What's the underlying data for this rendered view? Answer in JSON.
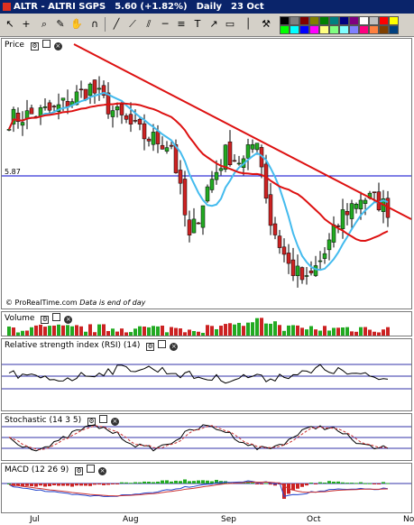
{
  "window": {
    "title_symbol": "ALTR - ALTRI SGPS",
    "title_price": "5.60 (+1.82%)",
    "title_period": "Daily",
    "title_date": "23 Oct"
  },
  "toolbar": {
    "icons": [
      "pointer-icon",
      "cross-icon",
      "zoom-icon",
      "brush-icon",
      "hand-icon",
      "magnet-icon",
      "line-icon",
      "ray-icon",
      "channel-icon",
      "horizontal-line-icon",
      "vertical-line-icon",
      "fibonacci-icon",
      "text-icon",
      "arrow-icon",
      "rectangle-icon",
      "tools-icon",
      "trash-icon"
    ],
    "palette": [
      "#000000",
      "#7f7f7f",
      "#800000",
      "#808000",
      "#008000",
      "#008080",
      "#000080",
      "#800080",
      "#ffffff",
      "#c0c0c0",
      "#ff0000",
      "#ffff00",
      "#00ff00",
      "#00ffff",
      "#0000ff",
      "#ff00ff",
      "#ffff80",
      "#80ff80",
      "#80ffff",
      "#8080ff",
      "#ff0080",
      "#ff8040",
      "#804000",
      "#004080"
    ]
  },
  "price_panel": {
    "label": "Price",
    "level_label": "5.87",
    "credit": "© ProRealTime.com",
    "credit_note": "Data is end of day"
  },
  "volume_panel": {
    "label": "Volume"
  },
  "rsi_panel": {
    "label": "Relative strength index (RSI) (14)"
  },
  "stochastic_panel": {
    "label": "Stochastic (14 3 5)"
  },
  "macd_panel": {
    "label": "MACD (12 26 9)"
  },
  "x_axis": {
    "labels": [
      "Jul",
      "Aug",
      "Sep",
      "Oct",
      "No"
    ]
  },
  "colors": {
    "up": "#22aa22",
    "down": "#cc2222",
    "fast_ma": "#44bbee",
    "slow_ma": "#dd1111",
    "level_line": "#0000cc"
  },
  "chart_data": {
    "type": "candlestick",
    "level": 5.87,
    "price_ylim": [
      5.15,
      6.58
    ]
  }
}
